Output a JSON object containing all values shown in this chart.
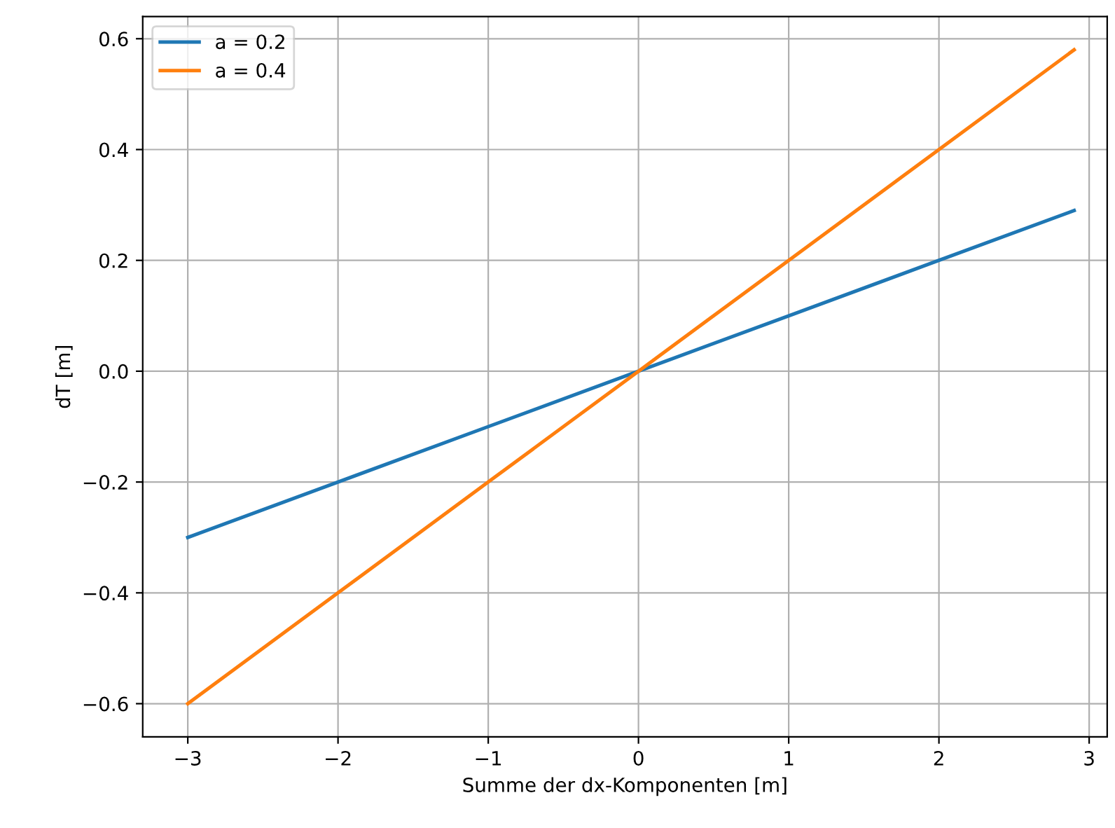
{
  "chart_data": {
    "type": "line",
    "xlabel": "Summe der dx-Komponenten [m]",
    "ylabel": "dT [m]",
    "x": [
      -3,
      -2,
      -1,
      0,
      1,
      2,
      2.9
    ],
    "series": [
      {
        "name": "a = 0.2",
        "color": "#1f77b4",
        "values": [
          -0.3,
          -0.2,
          -0.1,
          0.0,
          0.1,
          0.2,
          0.29
        ]
      },
      {
        "name": "a = 0.4",
        "color": "#ff7f0e",
        "values": [
          -0.6,
          -0.4,
          -0.2,
          0.0,
          0.2,
          0.4,
          0.58
        ]
      }
    ],
    "xlim": [
      -3.3,
      3.12
    ],
    "xticks": [
      {
        "value": -3,
        "label": "−3"
      },
      {
        "value": -2,
        "label": "−2"
      },
      {
        "value": -1,
        "label": "−1"
      },
      0,
      1,
      2,
      3
    ],
    "ylim": [
      -0.66,
      0.64
    ],
    "yticks": [
      {
        "value": -0.6,
        "label": "−0.6"
      },
      {
        "value": -0.4,
        "label": "−0.4"
      },
      {
        "value": -0.2,
        "label": "−0.2"
      },
      {
        "value": 0.0,
        "label": "0.0"
      },
      0.2,
      0.4,
      0.6
    ],
    "grid": true,
    "legend": "top left",
    "line_style": "solid",
    "marker": "none"
  }
}
